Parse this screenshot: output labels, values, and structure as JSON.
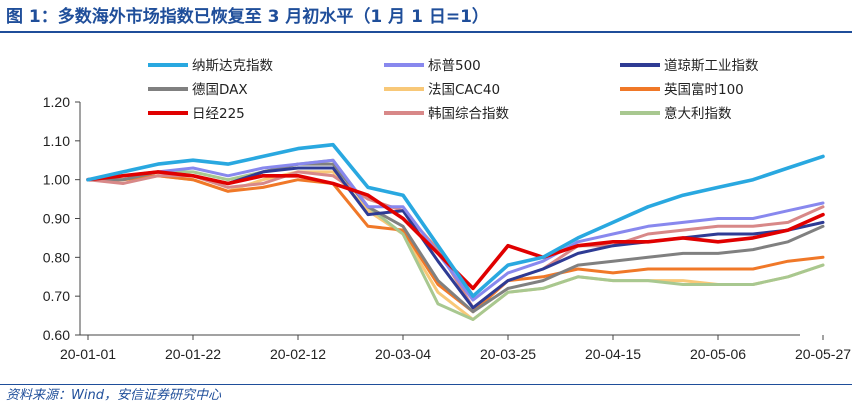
{
  "page": {
    "title": "图 1：多数海外市场指数已恢复至 3 月初水平（1 月 1 日=1）",
    "source": "资料来源：Wind，安信证券研究中心"
  },
  "chart_data": {
    "type": "line",
    "x_dates": [
      "2020-01-01",
      "2020-01-08",
      "2020-01-15",
      "2020-01-22",
      "2020-01-29",
      "2020-02-05",
      "2020-02-12",
      "2020-02-19",
      "2020-02-26",
      "2020-03-04",
      "2020-03-11",
      "2020-03-18",
      "2020-03-25",
      "2020-04-01",
      "2020-04-08",
      "2020-04-15",
      "2020-04-22",
      "2020-04-29",
      "2020-05-06",
      "2020-05-13",
      "2020-05-20",
      "2020-05-27"
    ],
    "xticks": [
      "20-01-01",
      "20-01-22",
      "20-02-12",
      "20-03-04",
      "20-03-25",
      "20-04-15",
      "20-05-06",
      "20-05-27"
    ],
    "yticks": [
      "0.60",
      "0.70",
      "0.80",
      "0.90",
      "1.00",
      "1.10",
      "1.20"
    ],
    "ylim": [
      0.6,
      1.2
    ],
    "grid": false,
    "legend_position": "top",
    "series": [
      {
        "name": "纳斯达克指数",
        "color": "#29a8e0",
        "values": [
          1.0,
          1.02,
          1.04,
          1.05,
          1.04,
          1.06,
          1.08,
          1.09,
          0.98,
          0.96,
          0.83,
          0.7,
          0.78,
          0.8,
          0.85,
          0.89,
          0.93,
          0.96,
          0.98,
          1.0,
          1.03,
          1.06
        ]
      },
      {
        "name": "标普500",
        "color": "#8888ee",
        "values": [
          1.0,
          1.01,
          1.02,
          1.03,
          1.01,
          1.03,
          1.04,
          1.05,
          0.93,
          0.93,
          0.81,
          0.69,
          0.76,
          0.79,
          0.84,
          0.86,
          0.88,
          0.89,
          0.9,
          0.9,
          0.92,
          0.94
        ]
      },
      {
        "name": "道琼斯工业指数",
        "color": "#2e3b94",
        "values": [
          1.0,
          1.01,
          1.02,
          1.01,
          0.99,
          1.02,
          1.03,
          1.03,
          0.91,
          0.92,
          0.79,
          0.67,
          0.74,
          0.77,
          0.81,
          0.83,
          0.84,
          0.85,
          0.86,
          0.86,
          0.87,
          0.89
        ]
      },
      {
        "name": "德国DAX",
        "color": "#808080",
        "values": [
          1.0,
          1.0,
          1.02,
          1.01,
          0.99,
          1.02,
          1.04,
          1.04,
          0.93,
          0.88,
          0.74,
          0.66,
          0.72,
          0.74,
          0.78,
          0.79,
          0.8,
          0.81,
          0.81,
          0.82,
          0.84,
          0.88
        ]
      },
      {
        "name": "法国CAC40",
        "color": "#f8c878",
        "values": [
          1.0,
          1.0,
          1.01,
          1.0,
          0.97,
          1.0,
          1.02,
          1.02,
          0.92,
          0.86,
          0.71,
          0.64,
          0.71,
          0.72,
          0.75,
          0.74,
          0.74,
          0.74,
          0.73,
          0.73,
          0.75,
          0.78
        ]
      },
      {
        "name": "英国富时100",
        "color": "#f07828",
        "values": [
          1.0,
          1.0,
          1.01,
          1.0,
          0.97,
          0.98,
          1.0,
          0.99,
          0.88,
          0.87,
          0.73,
          0.66,
          0.74,
          0.75,
          0.77,
          0.76,
          0.77,
          0.77,
          0.77,
          0.77,
          0.79,
          0.8
        ]
      },
      {
        "name": "日经225",
        "color": "#e00000",
        "values": [
          1.0,
          1.01,
          1.02,
          1.01,
          0.99,
          1.01,
          1.01,
          0.99,
          0.96,
          0.9,
          0.81,
          0.72,
          0.83,
          0.8,
          0.83,
          0.84,
          0.84,
          0.85,
          0.84,
          0.85,
          0.87,
          0.91
        ]
      },
      {
        "name": "韩国综合指数",
        "color": "#d88888",
        "values": [
          1.0,
          0.99,
          1.01,
          1.01,
          0.98,
          0.99,
          1.02,
          1.01,
          0.95,
          0.92,
          0.82,
          0.67,
          0.74,
          0.77,
          0.83,
          0.83,
          0.86,
          0.87,
          0.88,
          0.88,
          0.89,
          0.93
        ]
      },
      {
        "name": "意大利指数",
        "color": "#a8c890",
        "values": [
          1.0,
          1.01,
          1.02,
          1.02,
          1.0,
          1.02,
          1.04,
          1.05,
          0.93,
          0.86,
          0.68,
          0.64,
          0.71,
          0.72,
          0.75,
          0.74,
          0.74,
          0.73,
          0.73,
          0.73,
          0.75,
          0.78
        ]
      }
    ]
  }
}
